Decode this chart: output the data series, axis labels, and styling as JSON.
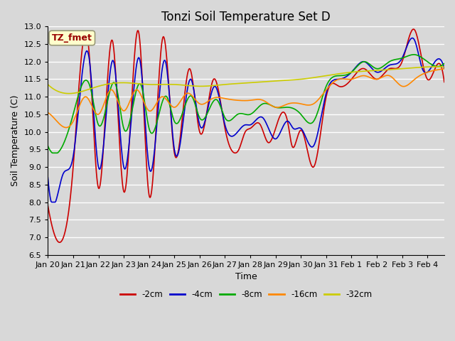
{
  "title": "Tonzi Soil Temperature Set D",
  "xlabel": "Time",
  "ylabel": "Soil Temperature (C)",
  "ylim": [
    6.5,
    13.0
  ],
  "yticks": [
    6.5,
    7.0,
    7.5,
    8.0,
    8.5,
    9.0,
    9.5,
    10.0,
    10.5,
    11.0,
    11.5,
    12.0,
    12.5,
    13.0
  ],
  "xtick_labels": [
    "Jan 20",
    "Jan 21",
    "Jan 22",
    "Jan 23",
    "Jan 24",
    "Jan 25",
    "Jan 26",
    "Jan 27",
    "Jan 28",
    "Jan 29",
    "Jan 30",
    "Jan 31",
    "Feb 1",
    "Feb 2",
    "Feb 3",
    "Feb 4"
  ],
  "legend_labels": [
    "-2cm",
    "-4cm",
    "-8cm",
    "-16cm",
    "-32cm"
  ],
  "legend_colors": [
    "#cc0000",
    "#0000cc",
    "#00aa00",
    "#ff8800",
    "#cccc00"
  ],
  "line_width": 1.2,
  "annotation_text": "TZ_fmet",
  "annotation_bg": "#ffffcc",
  "annotation_border": "#999977",
  "annotation_text_color": "#990000",
  "fig_bg": "#d8d8d8",
  "plot_bg": "#d8d8d8",
  "grid_color": "#ffffff",
  "title_fontsize": 12,
  "axis_label_fontsize": 9,
  "tick_fontsize": 8
}
